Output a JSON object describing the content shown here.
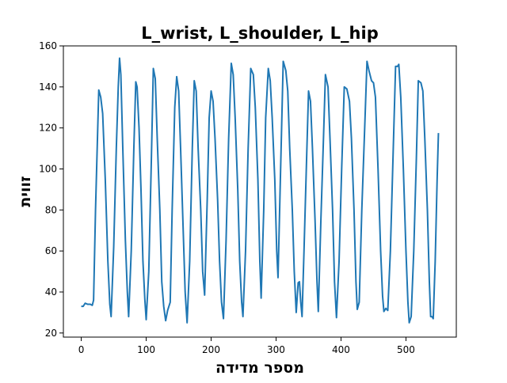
{
  "chart_data": {
    "type": "line",
    "title": "L_wrist, L_shoulder, L_hip",
    "xlabel": "מספר מדידה",
    "ylabel": "זווית",
    "xlim": [
      -27.5,
      577.5
    ],
    "ylim": [
      18,
      160
    ],
    "xticks": [
      0,
      100,
      200,
      300,
      400,
      500
    ],
    "yticks": [
      20,
      40,
      60,
      80,
      100,
      120,
      140,
      160
    ],
    "grid": false,
    "legend": "none",
    "series": [
      {
        "color": "#1f77b4",
        "points": [
          [
            0,
            33
          ],
          [
            3,
            33
          ],
          [
            6,
            34.5
          ],
          [
            10,
            34
          ],
          [
            14,
            34
          ],
          [
            17,
            33.5
          ],
          [
            19,
            36
          ],
          [
            22,
            80
          ],
          [
            27,
            138.5
          ],
          [
            30,
            135
          ],
          [
            33,
            127
          ],
          [
            37,
            95
          ],
          [
            41,
            55
          ],
          [
            44,
            34
          ],
          [
            46,
            28
          ],
          [
            50,
            62
          ],
          [
            54,
            110
          ],
          [
            57,
            140
          ],
          [
            59,
            154
          ],
          [
            61,
            146
          ],
          [
            64,
            110
          ],
          [
            68,
            65
          ],
          [
            71,
            40
          ],
          [
            73,
            28
          ],
          [
            77,
            60
          ],
          [
            81,
            110
          ],
          [
            84,
            142.5
          ],
          [
            86,
            140
          ],
          [
            89,
            120
          ],
          [
            92,
            90
          ],
          [
            95,
            55
          ],
          [
            98,
            36
          ],
          [
            100,
            26.5
          ],
          [
            104,
            50
          ],
          [
            108,
            105
          ],
          [
            111,
            149
          ],
          [
            114,
            144
          ],
          [
            117,
            115
          ],
          [
            121,
            80
          ],
          [
            124,
            45
          ],
          [
            127,
            33
          ],
          [
            130,
            26
          ],
          [
            133,
            31
          ],
          [
            137,
            35
          ],
          [
            140,
            80
          ],
          [
            144,
            130
          ],
          [
            147,
            145
          ],
          [
            150,
            138
          ],
          [
            153,
            110
          ],
          [
            157,
            70
          ],
          [
            160,
            40
          ],
          [
            163,
            25
          ],
          [
            167,
            55
          ],
          [
            171,
            110
          ],
          [
            174,
            143
          ],
          [
            177,
            138
          ],
          [
            180,
            110
          ],
          [
            184,
            80
          ],
          [
            187,
            50
          ],
          [
            190,
            38.5
          ],
          [
            194,
            85
          ],
          [
            197,
            125
          ],
          [
            200,
            138
          ],
          [
            203,
            133
          ],
          [
            206,
            115
          ],
          [
            210,
            85
          ],
          [
            213,
            55
          ],
          [
            216,
            35
          ],
          [
            219,
            27
          ],
          [
            223,
            65
          ],
          [
            227,
            115
          ],
          [
            231,
            151.5
          ],
          [
            234,
            146
          ],
          [
            237,
            125
          ],
          [
            241,
            90
          ],
          [
            244,
            55
          ],
          [
            247,
            35
          ],
          [
            249,
            28
          ],
          [
            253,
            60
          ],
          [
            257,
            110
          ],
          [
            261,
            149
          ],
          [
            265,
            146
          ],
          [
            268,
            130
          ],
          [
            272,
            95
          ],
          [
            275,
            55
          ],
          [
            277,
            37
          ],
          [
            281,
            80
          ],
          [
            284,
            125
          ],
          [
            288,
            149
          ],
          [
            291,
            143
          ],
          [
            294,
            125
          ],
          [
            298,
            95
          ],
          [
            301,
            60
          ],
          [
            303,
            47
          ],
          [
            307,
            100
          ],
          [
            311,
            152.5
          ],
          [
            315,
            148
          ],
          [
            318,
            138
          ],
          [
            321,
            110
          ],
          [
            325,
            80
          ],
          [
            328,
            50
          ],
          [
            331,
            30
          ],
          [
            334,
            44.5
          ],
          [
            336,
            45
          ],
          [
            338,
            35
          ],
          [
            340,
            28
          ],
          [
            343,
            60
          ],
          [
            347,
            105
          ],
          [
            350,
            138
          ],
          [
            353,
            133
          ],
          [
            356,
            110
          ],
          [
            360,
            75
          ],
          [
            363,
            45
          ],
          [
            365,
            30.5
          ],
          [
            369,
            75
          ],
          [
            373,
            115
          ],
          [
            376,
            146
          ],
          [
            380,
            140
          ],
          [
            383,
            115
          ],
          [
            387,
            80
          ],
          [
            390,
            45
          ],
          [
            393,
            27.5
          ],
          [
            397,
            55
          ],
          [
            401,
            100
          ],
          [
            405,
            140
          ],
          [
            409,
            139
          ],
          [
            413,
            133
          ],
          [
            416,
            115
          ],
          [
            420,
            80
          ],
          [
            423,
            45
          ],
          [
            425,
            31.5
          ],
          [
            428,
            35
          ],
          [
            432,
            80
          ],
          [
            437,
            125
          ],
          [
            440,
            152.5
          ],
          [
            443,
            148
          ],
          [
            447,
            143
          ],
          [
            450,
            142
          ],
          [
            453,
            135
          ],
          [
            457,
            100
          ],
          [
            461,
            60
          ],
          [
            464,
            38
          ],
          [
            466,
            30.5
          ],
          [
            469,
            32
          ],
          [
            472,
            31
          ],
          [
            476,
            60
          ],
          [
            480,
            105
          ],
          [
            484,
            150
          ],
          [
            487,
            150
          ],
          [
            489,
            151
          ],
          [
            492,
            135
          ],
          [
            496,
            100
          ],
          [
            500,
            60
          ],
          [
            503,
            35
          ],
          [
            505,
            25
          ],
          [
            508,
            28
          ],
          [
            512,
            60
          ],
          [
            516,
            105
          ],
          [
            519,
            143
          ],
          [
            523,
            142
          ],
          [
            526,
            138
          ],
          [
            529,
            115
          ],
          [
            533,
            80
          ],
          [
            536,
            45
          ],
          [
            538,
            28
          ],
          [
            540,
            28
          ],
          [
            542,
            27
          ],
          [
            545,
            55
          ],
          [
            548,
            95
          ],
          [
            550,
            117.5
          ]
        ]
      }
    ]
  }
}
